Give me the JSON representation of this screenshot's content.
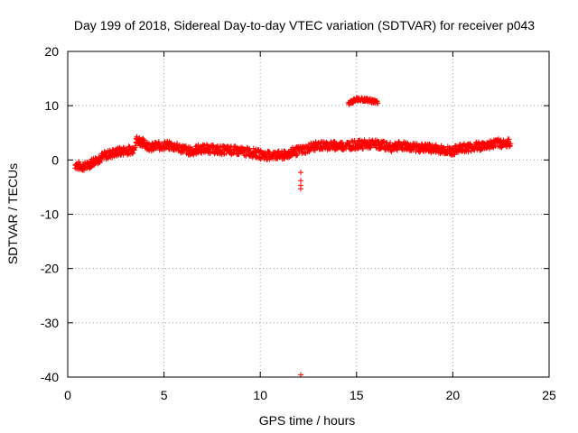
{
  "chart_data": {
    "type": "scatter",
    "title": "Day 199 of 2018, Sidereal Day-to-day VTEC variation (SDTVAR) for receiver p043",
    "xlabel": "GPS time / hours",
    "ylabel": "SDTVAR / TECUs",
    "xlim": [
      0,
      25
    ],
    "ylim": [
      -40,
      20
    ],
    "x_ticks": [
      0,
      5,
      10,
      15,
      20,
      25
    ],
    "y_ticks": [
      -40,
      -30,
      -20,
      -10,
      0,
      10,
      20
    ],
    "x_tick_labels": [
      "0",
      "5",
      "10",
      "15",
      "20",
      "25"
    ],
    "y_tick_labels": [
      "-40",
      "-30",
      "-20",
      "-10",
      "0",
      "10",
      "20"
    ],
    "grid": true,
    "marker": "+",
    "colors": {
      "points": "#ff0000",
      "grid": "#a0a0a0",
      "axes": "#000000"
    },
    "series": [
      {
        "name": "SDTVAR",
        "trend": [
          [
            0.4,
            -0.9
          ],
          [
            0.6,
            -1.1
          ],
          [
            0.8,
            -1.2
          ],
          [
            1.0,
            -1.1
          ],
          [
            1.2,
            -0.6
          ],
          [
            1.4,
            -0.2
          ],
          [
            1.6,
            0.2
          ],
          [
            1.8,
            0.6
          ],
          [
            2.0,
            0.9
          ],
          [
            2.2,
            1.1
          ],
          [
            2.4,
            1.3
          ],
          [
            2.6,
            1.5
          ],
          [
            2.8,
            1.6
          ],
          [
            3.0,
            1.7
          ],
          [
            3.2,
            1.8
          ],
          [
            3.4,
            2.0
          ],
          [
            3.6,
            3.8
          ],
          [
            3.8,
            3.4
          ],
          [
            4.0,
            2.9
          ],
          [
            4.2,
            2.6
          ],
          [
            4.4,
            2.4
          ],
          [
            4.6,
            2.5
          ],
          [
            4.8,
            2.6
          ],
          [
            5.0,
            2.7
          ],
          [
            5.4,
            2.6
          ],
          [
            5.8,
            2.2
          ],
          [
            6.2,
            1.8
          ],
          [
            6.4,
            1.5
          ],
          [
            6.8,
            2.0
          ],
          [
            7.2,
            2.1
          ],
          [
            7.6,
            1.9
          ],
          [
            8.0,
            1.8
          ],
          [
            8.4,
            1.8
          ],
          [
            8.8,
            1.7
          ],
          [
            9.2,
            1.5
          ],
          [
            9.6,
            1.4
          ],
          [
            10.0,
            1.0
          ],
          [
            10.4,
            0.8
          ],
          [
            10.8,
            0.9
          ],
          [
            11.2,
            0.8
          ],
          [
            11.6,
            1.4
          ],
          [
            11.9,
            1.6
          ],
          [
            12.4,
            2.0
          ],
          [
            12.6,
            2.4
          ],
          [
            13.0,
            2.6
          ],
          [
            13.5,
            2.7
          ],
          [
            14.0,
            2.6
          ],
          [
            14.5,
            2.7
          ],
          [
            15.0,
            2.8
          ],
          [
            15.5,
            2.9
          ],
          [
            16.0,
            2.9
          ],
          [
            16.2,
            2.8
          ],
          [
            16.6,
            2.6
          ],
          [
            16.8,
            2.3
          ],
          [
            17.0,
            2.6
          ],
          [
            17.5,
            2.6
          ],
          [
            18.0,
            2.3
          ],
          [
            18.5,
            2.2
          ],
          [
            19.0,
            2.1
          ],
          [
            19.5,
            1.9
          ],
          [
            20.0,
            1.6
          ],
          [
            20.4,
            2.3
          ],
          [
            20.8,
            2.3
          ],
          [
            21.2,
            2.5
          ],
          [
            21.6,
            2.6
          ],
          [
            22.0,
            2.9
          ],
          [
            22.4,
            3.1
          ],
          [
            22.8,
            3.1
          ],
          [
            23.0,
            3.0
          ]
        ],
        "upper_arc": [
          [
            14.6,
            10.5
          ],
          [
            14.8,
            10.8
          ],
          [
            15.0,
            11.2
          ],
          [
            15.2,
            11.2
          ],
          [
            15.4,
            11.1
          ],
          [
            15.6,
            11.0
          ],
          [
            15.8,
            10.9
          ],
          [
            16.0,
            10.7
          ],
          [
            16.1,
            10.5
          ]
        ],
        "outliers": [
          [
            12.1,
            -2.3
          ],
          [
            12.1,
            -3.8
          ],
          [
            12.1,
            -4.7
          ],
          [
            12.1,
            -5.3
          ],
          [
            12.1,
            -39.6
          ]
        ]
      }
    ]
  }
}
